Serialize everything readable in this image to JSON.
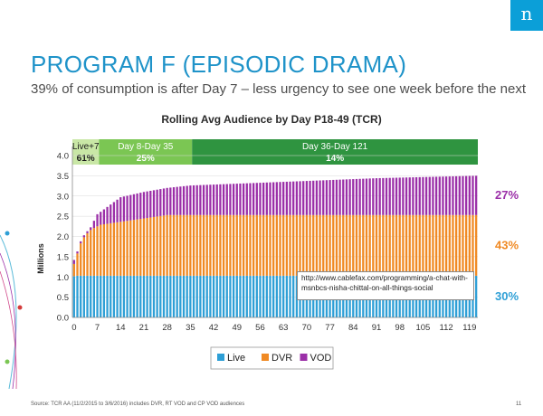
{
  "slide": {
    "logo_letter": "n",
    "title": "PROGRAM F (EPISODIC DRAMA)",
    "subtitle": "39% of consumption is after Day 7 – less urgency to see one week before the next",
    "url_note": "http://www.cablefax.com/programming/a-chat-with-msnbcs-nisha-chittal-on-all-things-social",
    "source": "Source: TCR AA (11/2/2015 to 3/6/2016) includes DVR, RT VOD and CP VOD audiences",
    "page_number": "11"
  },
  "chart_data": {
    "type": "bar",
    "stacked": true,
    "title": "Rolling Avg Audience by Day P18-49 (TCR)",
    "ylabel": "Millions",
    "xlabel": "",
    "ylim": [
      0,
      4.0
    ],
    "yticks": [
      0.0,
      0.5,
      1.0,
      1.5,
      2.0,
      2.5,
      3.0,
      3.5,
      4.0
    ],
    "xlim": [
      0,
      121
    ],
    "xticks": [
      0,
      7,
      14,
      21,
      28,
      35,
      42,
      49,
      56,
      63,
      70,
      77,
      84,
      91,
      98,
      105,
      112,
      119
    ],
    "days_count": 122,
    "legend": {
      "position": "bottom",
      "items": [
        {
          "name": "Live",
          "color": "#2e9fd6"
        },
        {
          "name": "DVR",
          "color": "#f08a24"
        },
        {
          "name": "VOD",
          "color": "#9b2fa8"
        }
      ]
    },
    "series": [
      {
        "name": "Live",
        "color": "#2e9fd6",
        "values_by_day_0_to_8": [
          1.02,
          1.03,
          1.03,
          1.03,
          1.03,
          1.03,
          1.03,
          1.03,
          1.03
        ],
        "plateau_value": 1.03
      },
      {
        "name": "DVR",
        "color": "#f08a24",
        "values_by_day_0_to_8": [
          0.3,
          0.55,
          0.8,
          0.95,
          1.05,
          1.13,
          1.18,
          1.22,
          1.26
        ],
        "plateau_value": 1.5,
        "plateau_from_day": 28
      },
      {
        "name": "VOD",
        "color": "#9b2fa8",
        "start_value": 0.1,
        "end_value": 0.97
      }
    ],
    "total_reference": {
      "day0": 1.42,
      "day7": 2.55,
      "day14": 2.97,
      "day21": 3.1,
      "day28": 3.2,
      "day35": 3.26,
      "day63": 3.35,
      "day91": 3.44,
      "day121": 3.5
    },
    "share_labels": [
      {
        "text": "27%",
        "series": "VOD",
        "color": "#9b2fa8"
      },
      {
        "text": "43%",
        "series": "DVR",
        "color": "#f08a24"
      },
      {
        "text": "30%",
        "series": "Live",
        "color": "#2e9fd6"
      }
    ],
    "bands": [
      {
        "label": "Live+7",
        "value": "61%",
        "from_day": 0,
        "to_day": 7,
        "color": "#c9e7a6",
        "text_color": "#1a1a1a"
      },
      {
        "label": "Day 8-Day 35",
        "value": "25%",
        "from_day": 8,
        "to_day": 35,
        "color": "#7bc653",
        "text_color": "#ffffff"
      },
      {
        "label": "Day 36-Day 121",
        "value": "14%",
        "from_day": 36,
        "to_day": 121,
        "color": "#2f9440",
        "text_color": "#ffffff"
      }
    ]
  }
}
